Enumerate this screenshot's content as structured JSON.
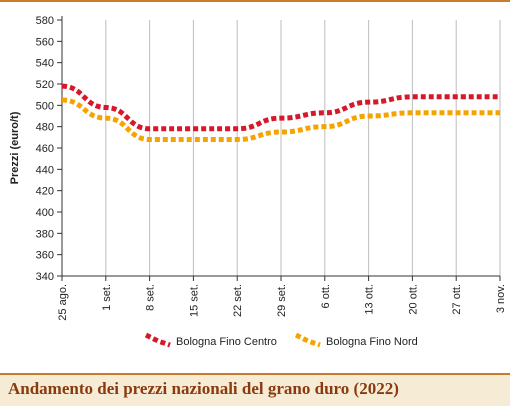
{
  "chart_data": {
    "type": "line",
    "title": "Andamento dei prezzi nazionali del grano duro (2022)",
    "ylabel": "Prezzi (euro/t)",
    "xlabel": "",
    "ylim": [
      340,
      580
    ],
    "y_ticks": [
      340,
      360,
      380,
      400,
      420,
      440,
      460,
      480,
      500,
      520,
      540,
      560,
      580
    ],
    "categories": [
      "25 ago.",
      "1 set.",
      "8 set.",
      "15 set.",
      "22 set.",
      "29 set.",
      "6 ott.",
      "13 ott.",
      "20 ott.",
      "27 ott.",
      "3 nov."
    ],
    "series": [
      {
        "name": "Bologna Fino Centro",
        "color": "#d7182a",
        "values": [
          518,
          498,
          478,
          478,
          478,
          488,
          493,
          503,
          508,
          508,
          508
        ]
      },
      {
        "name": "Bologna Fino Nord",
        "color": "#f5a300",
        "values": [
          505,
          488,
          468,
          468,
          468,
          475,
          480,
          490,
          493,
          493,
          493
        ]
      }
    ],
    "grid": "vertical",
    "legend_position": "bottom",
    "accent_color": "#c97b2a"
  }
}
